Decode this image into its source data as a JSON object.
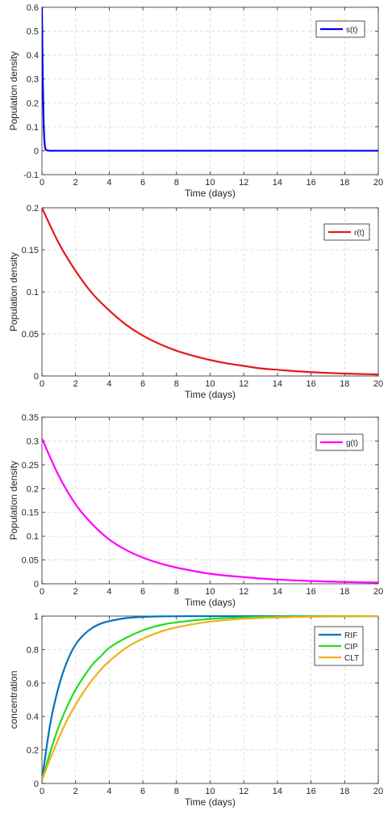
{
  "chart_data": [
    {
      "type": "line",
      "xlabel": "Time (days)",
      "ylabel": "Population density",
      "xlim": [
        0,
        20
      ],
      "ylim": [
        -0.1,
        0.6
      ],
      "xticks": [
        0,
        2,
        4,
        6,
        8,
        10,
        12,
        14,
        16,
        18,
        20
      ],
      "yticks": [
        -0.1,
        0,
        0.1,
        0.2,
        0.3,
        0.4,
        0.5,
        0.6
      ],
      "ytick_labels": [
        "-0.1",
        "0",
        "0.1",
        "0.2",
        "0.3",
        "0.4",
        "0.5",
        "0.6"
      ],
      "grid": true,
      "legend_position": "top-right",
      "series": [
        {
          "name": "s(t)",
          "color": "#0000ff",
          "x": [
            0,
            0.05,
            0.1,
            0.15,
            0.2,
            0.3,
            0.5,
            1,
            2,
            4,
            6,
            8,
            10,
            12,
            14,
            16,
            18,
            20
          ],
          "y": [
            0.6,
            0.3,
            0.12,
            0.04,
            0.01,
            0.002,
            0,
            0,
            0,
            0,
            0,
            0,
            0,
            0,
            0,
            0,
            0,
            0
          ]
        }
      ]
    },
    {
      "type": "line",
      "xlabel": "Time (days)",
      "ylabel": "Population density",
      "xlim": [
        0,
        20
      ],
      "ylim": [
        0,
        0.2
      ],
      "xticks": [
        0,
        2,
        4,
        6,
        8,
        10,
        12,
        14,
        16,
        18,
        20
      ],
      "yticks": [
        0,
        0.05,
        0.1,
        0.15,
        0.2
      ],
      "ytick_labels": [
        "0",
        "0.05",
        "0.1",
        "0.15",
        "0.2"
      ],
      "grid": true,
      "legend_position": "top-right",
      "series": [
        {
          "name": "r(t)",
          "color": "#e41a1c",
          "x": [
            0,
            1,
            2,
            3,
            4,
            5,
            6,
            7,
            8,
            9,
            10,
            11,
            12,
            13,
            14,
            15,
            16,
            17,
            18,
            19,
            20
          ],
          "y": [
            0.2,
            0.158,
            0.125,
            0.098,
            0.078,
            0.061,
            0.048,
            0.038,
            0.03,
            0.024,
            0.019,
            0.015,
            0.012,
            0.009,
            0.0074,
            0.0058,
            0.0046,
            0.0036,
            0.0029,
            0.0023,
            0.0018
          ]
        }
      ]
    },
    {
      "type": "line",
      "xlabel": "Time (days)",
      "ylabel": "Population density",
      "xlim": [
        0,
        20
      ],
      "ylim": [
        0,
        0.35
      ],
      "xticks": [
        0,
        2,
        4,
        6,
        8,
        10,
        12,
        14,
        16,
        18,
        20
      ],
      "yticks": [
        0,
        0.05,
        0.1,
        0.15,
        0.2,
        0.25,
        0.3,
        0.35
      ],
      "ytick_labels": [
        "0",
        "0.05",
        "0.1",
        "0.15",
        "0.2",
        "0.25",
        "0.3",
        "0.35"
      ],
      "grid": true,
      "legend_position": "top-right",
      "series": [
        {
          "name": "g(t)",
          "color": "#ff00ff",
          "x": [
            0,
            1,
            2,
            3,
            4,
            5,
            6,
            7,
            8,
            9,
            10,
            11,
            12,
            13,
            14,
            15,
            16,
            17,
            18,
            19,
            20
          ],
          "y": [
            0.305,
            0.227,
            0.167,
            0.125,
            0.093,
            0.071,
            0.055,
            0.043,
            0.034,
            0.027,
            0.021,
            0.017,
            0.014,
            0.011,
            0.0088,
            0.0071,
            0.0058,
            0.0047,
            0.0038,
            0.0031,
            0.0025
          ]
        }
      ]
    },
    {
      "type": "line",
      "xlabel": "Time (days)",
      "ylabel": "concentration",
      "xlim": [
        0,
        20
      ],
      "ylim": [
        0,
        1
      ],
      "xticks": [
        0,
        2,
        4,
        6,
        8,
        10,
        12,
        14,
        16,
        18,
        20
      ],
      "yticks": [
        0,
        0.2,
        0.4,
        0.6,
        0.8,
        1
      ],
      "ytick_labels": [
        "0",
        "0.2",
        "0.4",
        "0.6",
        "0.8",
        "1"
      ],
      "grid": true,
      "legend_position": "top-right",
      "series": [
        {
          "name": "RIF",
          "color": "#0072bd",
          "x": [
            0,
            0.5,
            1,
            1.5,
            2,
            2.5,
            3,
            3.5,
            4,
            5,
            6,
            7,
            8,
            10,
            12,
            14,
            16,
            18,
            20
          ],
          "y": [
            0.02,
            0.36,
            0.58,
            0.73,
            0.83,
            0.89,
            0.93,
            0.955,
            0.97,
            0.988,
            0.995,
            0.998,
            0.999,
            1,
            1,
            1,
            1,
            1,
            1
          ]
        },
        {
          "name": "CIP",
          "color": "#22dd22",
          "x": [
            0,
            0.5,
            1,
            1.5,
            2,
            2.5,
            3,
            3.5,
            4,
            5,
            6,
            7,
            8,
            10,
            12,
            14,
            16,
            18,
            20
          ],
          "y": [
            0.02,
            0.19,
            0.34,
            0.46,
            0.56,
            0.64,
            0.71,
            0.76,
            0.81,
            0.87,
            0.915,
            0.945,
            0.963,
            0.983,
            0.993,
            0.997,
            0.999,
            1,
            1
          ]
        },
        {
          "name": "CLT",
          "color": "#edb120",
          "x": [
            0,
            0.5,
            1,
            1.5,
            2,
            2.5,
            3,
            3.5,
            4,
            5,
            6,
            7,
            8,
            10,
            12,
            14,
            16,
            18,
            20
          ],
          "y": [
            0.02,
            0.15,
            0.27,
            0.38,
            0.47,
            0.55,
            0.62,
            0.68,
            0.73,
            0.81,
            0.865,
            0.905,
            0.933,
            0.967,
            0.984,
            0.992,
            0.996,
            0.998,
            0.999
          ]
        }
      ]
    }
  ]
}
